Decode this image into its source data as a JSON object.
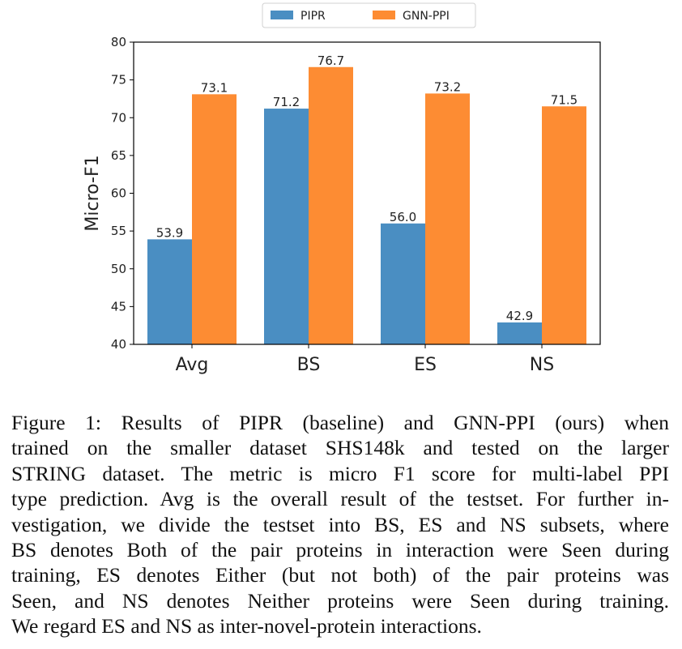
{
  "chart_data": {
    "type": "bar",
    "title": "",
    "xlabel": "",
    "ylabel": "Micro-F1",
    "ylim": [
      40,
      80
    ],
    "yticks": [
      40,
      45,
      50,
      55,
      60,
      65,
      70,
      75,
      80
    ],
    "categories": [
      "Avg",
      "BS",
      "ES",
      "NS"
    ],
    "series": [
      {
        "name": "PIPR",
        "color": "#4a8ec2",
        "values": [
          53.9,
          71.2,
          56.0,
          42.9
        ],
        "labels": [
          "53.9",
          "71.2",
          "56.0",
          "42.9"
        ]
      },
      {
        "name": "GNN-PPI",
        "color": "#fd8c33",
        "values": [
          73.1,
          76.7,
          73.2,
          71.5
        ],
        "labels": [
          "73.1",
          "76.7",
          "73.2",
          "71.5"
        ]
      }
    ],
    "legend": "top-center",
    "grid": false
  },
  "caption": {
    "lines": [
      "Figure 1: Results of PIPR (baseline) and GNN-PPI (ours) when",
      "trained on the smaller dataset SHS148k and tested on the larger",
      "STRING dataset. The metric is micro F1 score for multi-label PPI",
      "type prediction. Avg is the overall result of the testset. For further in-",
      "vestigation, we divide the testset into BS, ES and NS subsets, where",
      "BS denotes Both of the pair proteins in interaction were Seen during",
      "training, ES denotes Either (but not both) of the pair proteins was",
      "Seen, and NS denotes Neither proteins were Seen during training.",
      "We regard ES and NS as inter-novel-protein interactions."
    ]
  }
}
